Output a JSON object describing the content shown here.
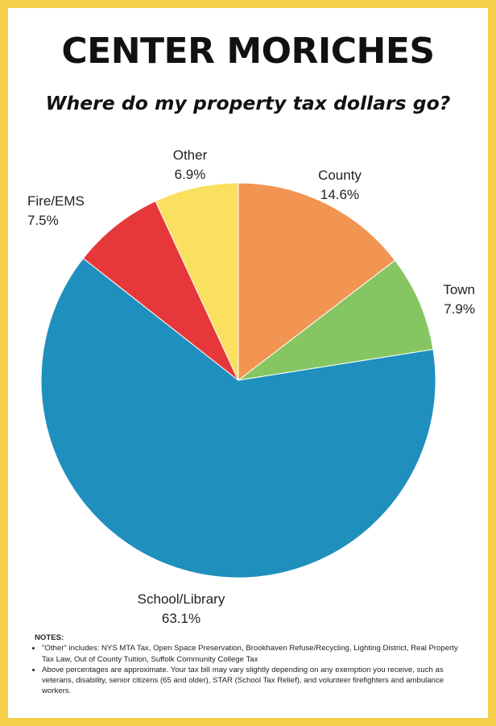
{
  "header": {
    "title": "CENTER MORICHES",
    "subtitle": "Where do my property tax dollars go?"
  },
  "chart_data": {
    "type": "pie",
    "categories": [
      "County",
      "Town",
      "School/Library",
      "Fire/EMS",
      "Other"
    ],
    "values": [
      14.6,
      7.9,
      63.1,
      7.5,
      6.9
    ],
    "value_labels": [
      "14.6%",
      "7.9%",
      "63.1%",
      "7.5%",
      "6.9%"
    ],
    "colors": [
      "#f29452",
      "#86c662",
      "#1f8fbe",
      "#e6383a",
      "#f9e05f"
    ],
    "start": "12 o'clock, clockwise"
  },
  "notes": {
    "title": "NOTES:",
    "items": [
      "\"Other\" includes: NYS MTA Tax, Open Space Preservation, Brookhaven Refuse/Recycling, Lighting District, Real Property Tax Law, Out of County Tuition, Suffolk Community College Tax",
      "Above percentages are approximate. Your tax bill may vary slightly depending on any exemption you receive, such as veterans, disability, senior citizens (65 and older), STAR (School Tax Relief), and volunteer firefighters and ambulance workers."
    ]
  }
}
